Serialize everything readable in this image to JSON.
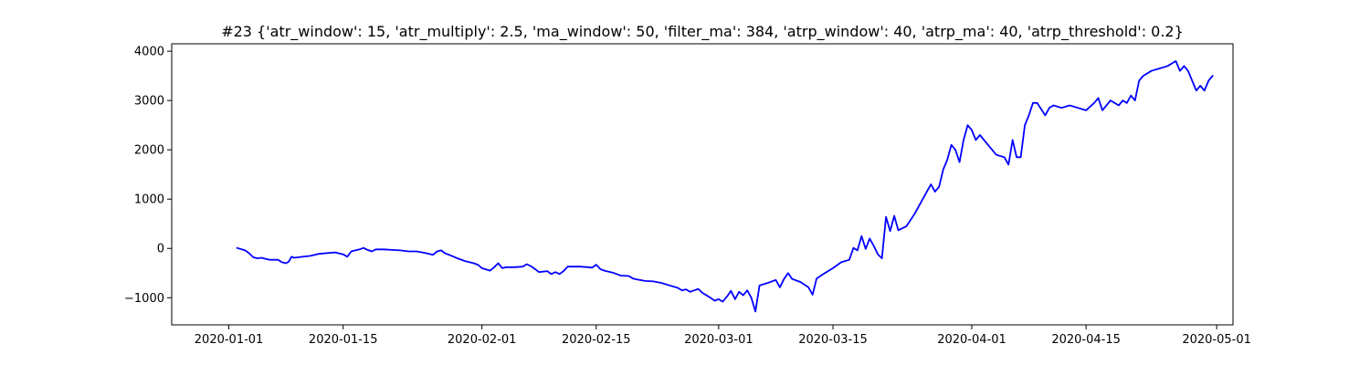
{
  "chart_data": {
    "type": "line",
    "title": "#23 {'atr_window': 15, 'atr_multiply': 2.5, 'ma_window': 50, 'filter_ma': 384, 'atrp_window': 40, 'atrp_ma': 40, 'atrp_threshold': 0.2}",
    "xlabel": "",
    "ylabel": "",
    "x_type": "date",
    "xlim": [
      "2019-12-25",
      "2020-05-03"
    ],
    "ylim": [
      -1550,
      4150
    ],
    "grid": false,
    "legend": "none",
    "x_ticks": [
      "2020-01-01",
      "2020-01-15",
      "2020-02-01",
      "2020-02-15",
      "2020-03-01",
      "2020-03-15",
      "2020-04-01",
      "2020-04-15",
      "2020-05-01"
    ],
    "y_ticks": [
      -1000,
      0,
      1000,
      2000,
      3000,
      4000
    ],
    "series": [
      {
        "color": "#0000ff",
        "points": [
          [
            "2020-01-02",
            10
          ],
          [
            "2020-01-03",
            -40
          ],
          [
            "2020-01-03",
            -100
          ],
          [
            "2020-01-04",
            -180
          ],
          [
            "2020-01-04",
            -200
          ],
          [
            "2020-01-05",
            -190
          ],
          [
            "2020-01-06",
            -230
          ],
          [
            "2020-01-07",
            -230
          ],
          [
            "2020-01-07",
            -280
          ],
          [
            "2020-01-08",
            -300
          ],
          [
            "2020-01-08",
            -270
          ],
          [
            "2020-01-08",
            -170
          ],
          [
            "2020-01-09",
            -190
          ],
          [
            "2020-01-10",
            -170
          ],
          [
            "2020-01-10",
            -160
          ],
          [
            "2020-01-11",
            -150
          ],
          [
            "2020-01-12",
            -110
          ],
          [
            "2020-01-14",
            -80
          ],
          [
            "2020-01-15",
            -120
          ],
          [
            "2020-01-15",
            -170
          ],
          [
            "2020-01-16",
            -60
          ],
          [
            "2020-01-17",
            -20
          ],
          [
            "2020-01-17",
            10
          ],
          [
            "2020-01-18",
            -30
          ],
          [
            "2020-01-18",
            -60
          ],
          [
            "2020-01-19",
            -20
          ],
          [
            "2020-01-20",
            -20
          ],
          [
            "2020-01-21",
            -30
          ],
          [
            "2020-01-22",
            -40
          ],
          [
            "2020-01-23",
            -60
          ],
          [
            "2020-01-24",
            -60
          ],
          [
            "2020-01-25",
            -90
          ],
          [
            "2020-01-26",
            -130
          ],
          [
            "2020-01-26",
            -60
          ],
          [
            "2020-01-27",
            -40
          ],
          [
            "2020-01-27",
            -100
          ],
          [
            "2020-01-28",
            -130
          ],
          [
            "2020-01-29",
            -200
          ],
          [
            "2020-01-30",
            -260
          ],
          [
            "2020-01-31",
            -300
          ],
          [
            "2020-01-31",
            -330
          ],
          [
            "2020-02-01",
            -400
          ],
          [
            "2020-02-02",
            -450
          ],
          [
            "2020-02-02",
            -380
          ],
          [
            "2020-02-03",
            -300
          ],
          [
            "2020-02-03",
            -400
          ],
          [
            "2020-02-04",
            -380
          ],
          [
            "2020-02-05",
            -380
          ],
          [
            "2020-02-06",
            -370
          ],
          [
            "2020-02-06",
            -320
          ],
          [
            "2020-02-07",
            -360
          ],
          [
            "2020-02-07",
            -420
          ],
          [
            "2020-02-08",
            -480
          ],
          [
            "2020-02-09",
            -460
          ],
          [
            "2020-02-09",
            -520
          ],
          [
            "2020-02-10",
            -480
          ],
          [
            "2020-02-10",
            -520
          ],
          [
            "2020-02-11",
            -460
          ],
          [
            "2020-02-11",
            -370
          ],
          [
            "2020-02-12",
            -370
          ],
          [
            "2020-02-13",
            -370
          ],
          [
            "2020-02-14",
            -380
          ],
          [
            "2020-02-14",
            -390
          ],
          [
            "2020-02-15",
            -330
          ],
          [
            "2020-02-15",
            -420
          ],
          [
            "2020-02-16",
            -450
          ],
          [
            "2020-02-17",
            -490
          ],
          [
            "2020-02-17",
            -520
          ],
          [
            "2020-02-18",
            -550
          ],
          [
            "2020-02-19",
            -560
          ],
          [
            "2020-02-19",
            -610
          ],
          [
            "2020-02-20",
            -630
          ],
          [
            "2020-02-21",
            -660
          ],
          [
            "2020-02-22",
            -670
          ],
          [
            "2020-02-23",
            -700
          ],
          [
            "2020-02-24",
            -750
          ],
          [
            "2020-02-25",
            -800
          ],
          [
            "2020-02-25",
            -850
          ],
          [
            "2020-02-26",
            -830
          ],
          [
            "2020-02-26",
            -880
          ],
          [
            "2020-02-27",
            -850
          ],
          [
            "2020-02-27",
            -820
          ],
          [
            "2020-02-28",
            -900
          ],
          [
            "2020-02-29",
            -1000
          ],
          [
            "2020-02-29",
            -1060
          ],
          [
            "2020-03-01",
            -1030
          ],
          [
            "2020-03-01",
            -1080
          ],
          [
            "2020-03-02",
            -980
          ],
          [
            "2020-03-02",
            -860
          ],
          [
            "2020-03-03",
            -1030
          ],
          [
            "2020-03-03",
            -880
          ],
          [
            "2020-03-04",
            -950
          ],
          [
            "2020-03-04",
            -850
          ],
          [
            "2020-03-05",
            -1000
          ],
          [
            "2020-03-05",
            -1280
          ],
          [
            "2020-03-06",
            -750
          ],
          [
            "2020-03-07",
            -700
          ],
          [
            "2020-03-08",
            -640
          ],
          [
            "2020-03-08",
            -790
          ],
          [
            "2020-03-09",
            -620
          ],
          [
            "2020-03-09",
            -500
          ],
          [
            "2020-03-10",
            -620
          ],
          [
            "2020-03-11",
            -680
          ],
          [
            "2020-03-12",
            -790
          ],
          [
            "2020-03-12",
            -940
          ],
          [
            "2020-03-13",
            -610
          ],
          [
            "2020-03-14",
            -500
          ],
          [
            "2020-03-15",
            -400
          ],
          [
            "2020-03-16",
            -280
          ],
          [
            "2020-03-17",
            -230
          ],
          [
            "2020-03-17",
            10
          ],
          [
            "2020-03-18",
            -40
          ],
          [
            "2020-03-18",
            250
          ],
          [
            "2020-03-19",
            -10
          ],
          [
            "2020-03-19",
            200
          ],
          [
            "2020-03-20",
            50
          ],
          [
            "2020-03-20",
            -120
          ],
          [
            "2020-03-21",
            -200
          ],
          [
            "2020-03-21",
            640
          ],
          [
            "2020-03-22",
            350
          ],
          [
            "2020-03-22",
            660
          ],
          [
            "2020-03-23",
            370
          ],
          [
            "2020-03-24",
            450
          ],
          [
            "2020-03-25",
            700
          ],
          [
            "2020-03-26",
            1000
          ],
          [
            "2020-03-27",
            1300
          ],
          [
            "2020-03-27",
            1150
          ],
          [
            "2020-03-28",
            1250
          ],
          [
            "2020-03-28",
            1600
          ],
          [
            "2020-03-29",
            1800
          ],
          [
            "2020-03-29",
            2100
          ],
          [
            "2020-03-30",
            2000
          ],
          [
            "2020-03-30",
            1750
          ],
          [
            "2020-03-31",
            2200
          ],
          [
            "2020-03-31",
            2500
          ],
          [
            "2020-04-01",
            2400
          ],
          [
            "2020-04-01",
            2200
          ],
          [
            "2020-04-02",
            2300
          ],
          [
            "2020-04-03",
            2100
          ],
          [
            "2020-04-04",
            1900
          ],
          [
            "2020-04-05",
            1850
          ],
          [
            "2020-04-05",
            1700
          ],
          [
            "2020-04-06",
            2200
          ],
          [
            "2020-04-06",
            1850
          ],
          [
            "2020-04-07",
            1850
          ],
          [
            "2020-04-07",
            2500
          ],
          [
            "2020-04-08",
            2700
          ],
          [
            "2020-04-08",
            2950
          ],
          [
            "2020-04-09",
            2950
          ],
          [
            "2020-04-10",
            2700
          ],
          [
            "2020-04-10",
            2850
          ],
          [
            "2020-04-11",
            2900
          ],
          [
            "2020-04-12",
            2850
          ],
          [
            "2020-04-13",
            2900
          ],
          [
            "2020-04-14",
            2850
          ],
          [
            "2020-04-15",
            2800
          ],
          [
            "2020-04-16",
            2950
          ],
          [
            "2020-04-16",
            3050
          ],
          [
            "2020-04-17",
            2800
          ],
          [
            "2020-04-18",
            3000
          ],
          [
            "2020-04-19",
            2900
          ],
          [
            "2020-04-19",
            3000
          ],
          [
            "2020-04-20",
            2950
          ],
          [
            "2020-04-20",
            3100
          ],
          [
            "2020-04-21",
            3000
          ],
          [
            "2020-04-21",
            3400
          ],
          [
            "2020-04-22",
            3500
          ],
          [
            "2020-04-23",
            3600
          ],
          [
            "2020-04-24",
            3650
          ],
          [
            "2020-04-25",
            3700
          ],
          [
            "2020-04-26",
            3800
          ],
          [
            "2020-04-26",
            3600
          ],
          [
            "2020-04-27",
            3700
          ],
          [
            "2020-04-27",
            3600
          ],
          [
            "2020-04-28",
            3400
          ],
          [
            "2020-04-28",
            3200
          ],
          [
            "2020-04-29",
            3300
          ],
          [
            "2020-04-29",
            3200
          ],
          [
            "2020-04-30",
            3400
          ],
          [
            "2020-04-30",
            3500
          ]
        ]
      }
    ]
  }
}
